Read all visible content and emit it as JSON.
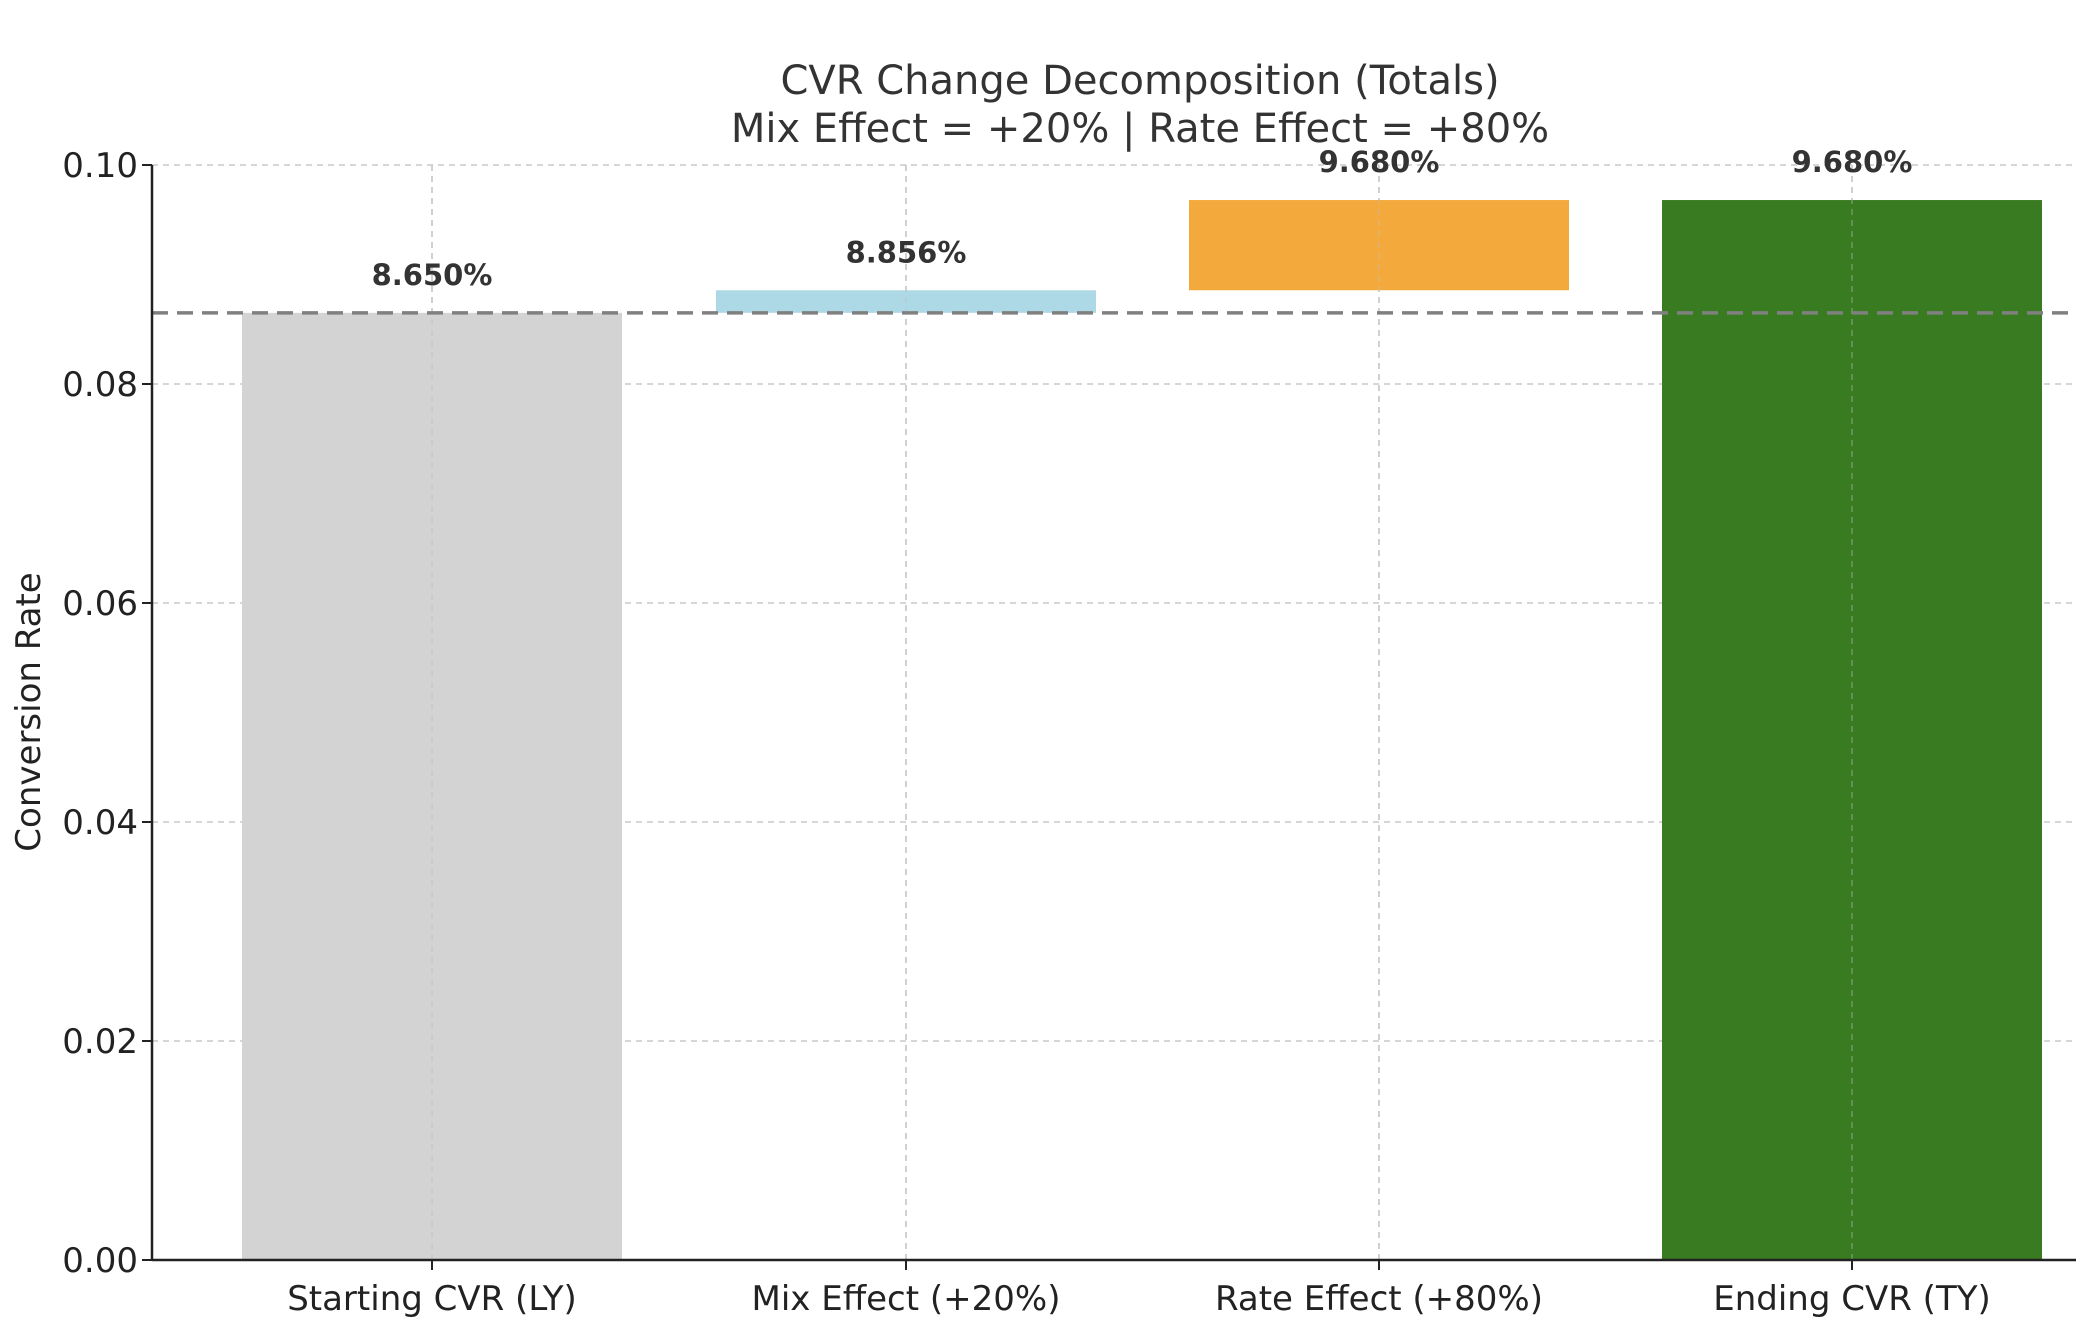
{
  "chart_data": {
    "type": "bar",
    "subtype": "waterfall",
    "title": "CVR Change Decomposition (Totals)",
    "subtitle": "Mix Effect = +20% | Rate Effect = +80%",
    "xlabel": "",
    "ylabel": "Conversion Rate",
    "ylim": [
      0,
      0.1
    ],
    "yticks": [
      0.0,
      0.02,
      0.04,
      0.06,
      0.08,
      0.1
    ],
    "ytick_labels": [
      "0.00",
      "0.02",
      "0.04",
      "0.06",
      "0.08",
      "0.10"
    ],
    "grid": true,
    "reference_line": {
      "value": 0.0865,
      "style": "dashed",
      "color": "#808080"
    },
    "categories": [
      "Starting CVR (LY)",
      "Mix Effect (+20%)",
      "Rate Effect (+80%)",
      "Ending CVR (TY)"
    ],
    "bars": [
      {
        "category": "Starting CVR (LY)",
        "base": 0.0,
        "top": 0.0865,
        "label": "8.650%",
        "color": "#d3d3d3"
      },
      {
        "category": "Mix Effect (+20%)",
        "base": 0.0865,
        "top": 0.08856,
        "label": "8.856%",
        "color": "#add8e6"
      },
      {
        "category": "Rate Effect (+80%)",
        "base": 0.08856,
        "top": 0.0968,
        "label": "9.680%",
        "color": "#f4a93c"
      },
      {
        "category": "Ending CVR (TY)",
        "base": 0.0,
        "top": 0.0968,
        "label": "9.680%",
        "color": "#387b21"
      }
    ]
  }
}
